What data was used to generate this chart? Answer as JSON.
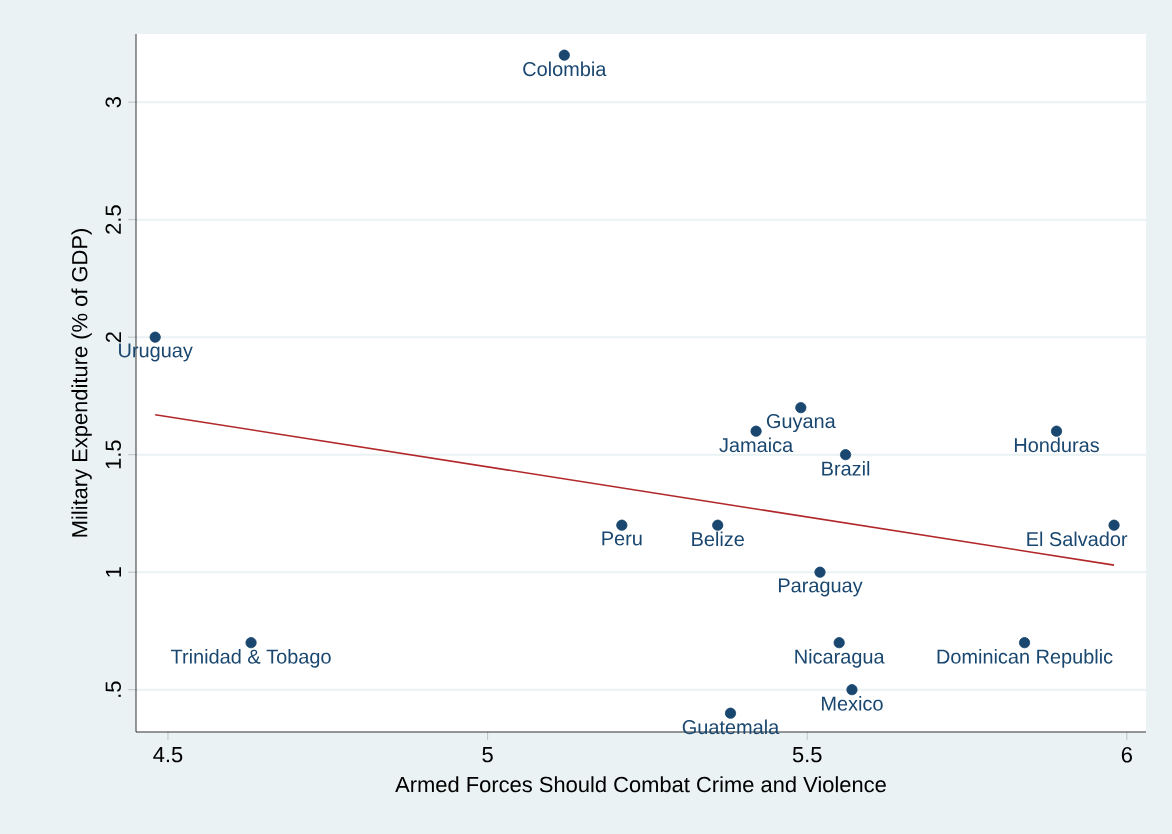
{
  "chart_data": {
    "type": "scatter",
    "xlabel": "Armed Forces Should Combat Crime and Violence",
    "ylabel": "Military Expenditure (% of GDP)",
    "xlim": [
      4.45,
      6.03
    ],
    "ylim": [
      0.32,
      3.29
    ],
    "xticks": [
      4.5,
      5,
      5.5,
      6
    ],
    "yticks": [
      {
        "value": 0.5,
        "label": ".5"
      },
      1,
      1.5,
      2,
      2.5,
      3
    ],
    "grid": "y",
    "series": [
      {
        "marker": "circle",
        "color": "#1a476f",
        "x": [
          5.12,
          4.48,
          4.63,
          5.49,
          5.42,
          5.56,
          5.89,
          5.21,
          5.36,
          5.98,
          5.52,
          5.55,
          5.84,
          5.57,
          5.38
        ],
        "values": [
          3.2,
          2.0,
          0.7,
          1.7,
          1.6,
          1.5,
          1.6,
          1.2,
          1.2,
          1.2,
          1.0,
          0.7,
          0.7,
          0.5,
          0.4
        ]
      },
      {
        "type": "line",
        "marker": "none",
        "color": "#b2272a",
        "x": [
          4.48,
          5.98
        ],
        "values": [
          1.67,
          1.03
        ]
      }
    ],
    "annotations": [
      {
        "text": "Colombia",
        "x": 5.12,
        "y": 3.2
      },
      {
        "text": "Uruguay",
        "x": 4.48,
        "y": 2.0
      },
      {
        "text": "Trinidad & Tobago",
        "x": 4.63,
        "y": 0.7
      },
      {
        "text": "Guyana",
        "x": 5.49,
        "y": 1.7
      },
      {
        "text": "Jamaica",
        "x": 5.42,
        "y": 1.6
      },
      {
        "text": "Brazil",
        "x": 5.56,
        "y": 1.5
      },
      {
        "text": "Honduras",
        "x": 5.89,
        "y": 1.6
      },
      {
        "text": "Peru",
        "x": 5.21,
        "y": 1.2
      },
      {
        "text": "Belize",
        "x": 5.36,
        "y": 1.2
      },
      {
        "text": "El Salvador",
        "x": 5.98,
        "y": 1.2
      },
      {
        "text": "Paraguay",
        "x": 5.52,
        "y": 1.0
      },
      {
        "text": "Nicaragua",
        "x": 5.55,
        "y": 0.7
      },
      {
        "text": "Dominican Republic",
        "x": 5.84,
        "y": 0.7
      },
      {
        "text": "Mexico",
        "x": 5.57,
        "y": 0.5
      },
      {
        "text": "Guatemala",
        "x": 5.38,
        "y": 0.4
      }
    ]
  }
}
